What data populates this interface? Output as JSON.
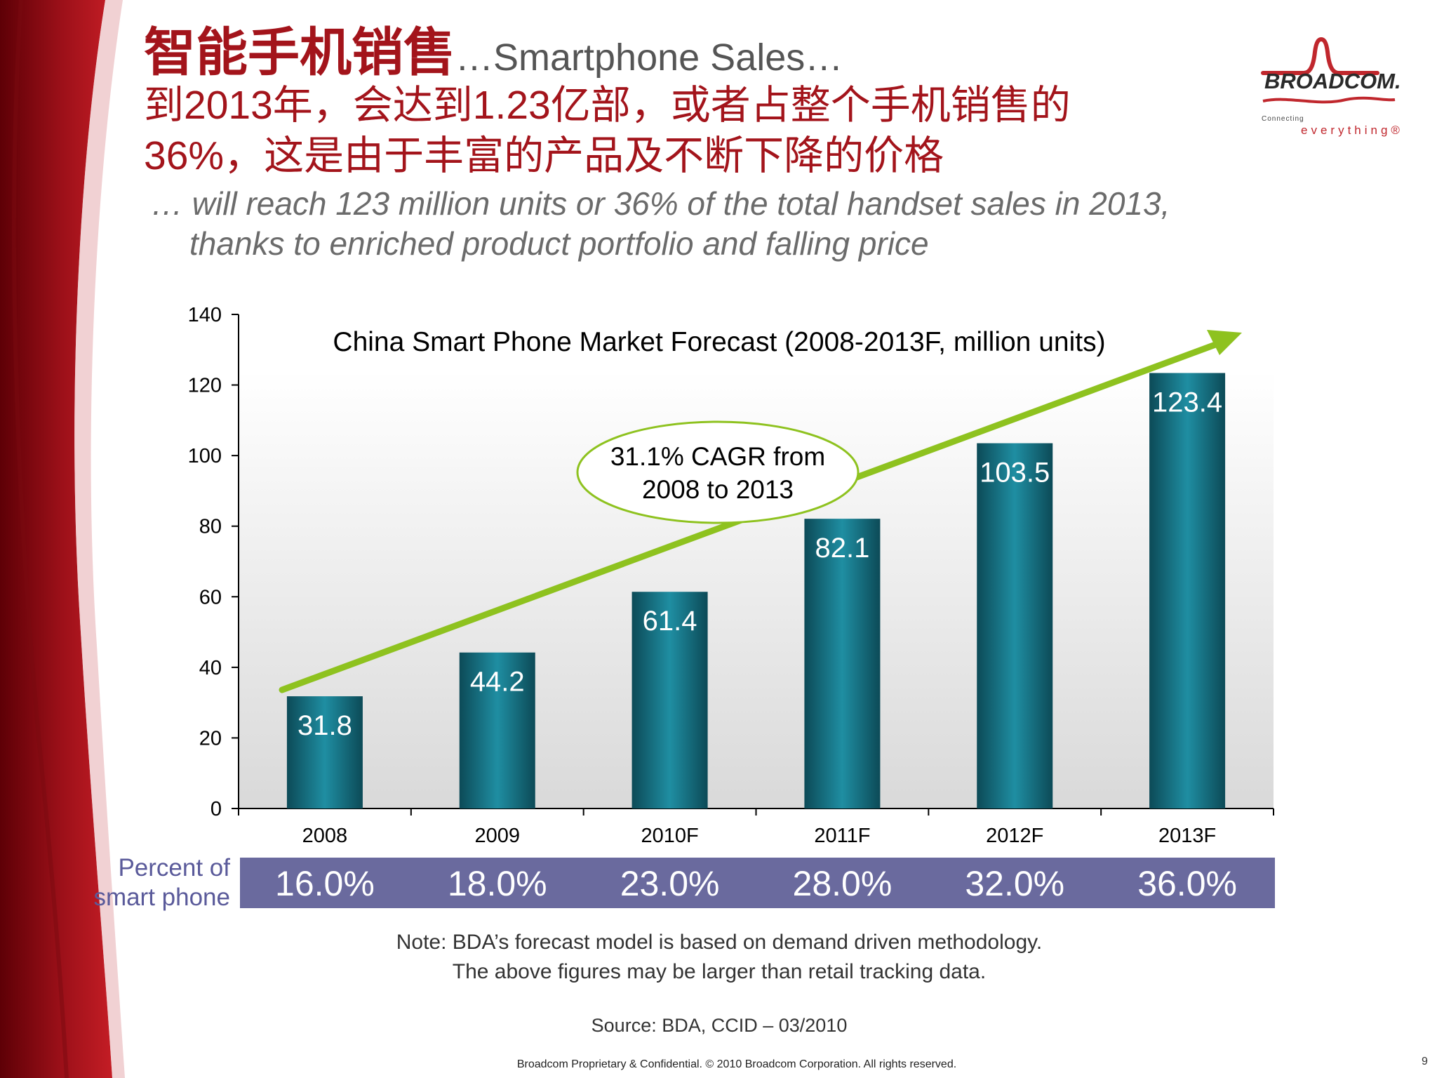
{
  "header": {
    "title_cn": "智能手机销售",
    "title_en": "…Smartphone Sales…",
    "subtitle_cn_line1": "到2013年，会达到1.23亿部，或者占整个手机销售的",
    "subtitle_cn_line2": "36%，这是由于丰富的产品及不断下降的价格",
    "subtitle_en_line1": "… will reach 123 million units or 36% of the total handset sales in 2013,",
    "subtitle_en_line2": "thanks to enriched product portfolio and  falling price"
  },
  "logo": {
    "wordmark": "BROADCOM.",
    "tagline_small": "Connecting",
    "tagline_main": "everything®"
  },
  "chart_data": {
    "type": "bar",
    "title": "China Smart Phone Market Forecast (2008-2013F, million units)",
    "categories": [
      "2008",
      "2009",
      "2010F",
      "2011F",
      "2012F",
      "2013F"
    ],
    "values": [
      31.8,
      44.2,
      61.4,
      82.1,
      103.5,
      123.4
    ],
    "value_labels": [
      "31.8",
      "44.2",
      "61.4",
      "82.1",
      "103.5",
      "123.4"
    ],
    "ylim": [
      0,
      140
    ],
    "yticks": [
      "0",
      "20",
      "40",
      "60",
      "80",
      "100",
      "120",
      "140"
    ],
    "annotation_line1": "31.1% CAGR from",
    "annotation_line2": "2008 to 2013",
    "percent_row_label_line1": "Percent of",
    "percent_row_label_line2": "smart phone",
    "percent_values": [
      "16.0%",
      "18.0%",
      "23.0%",
      "28.0%",
      "32.0%",
      "36.0%"
    ]
  },
  "colors": {
    "title_red": "#a3141b",
    "bar_teal": "#1b7a8c",
    "arrow_green": "#8ec21f",
    "percent_row_bg": "#6a6a9e"
  },
  "note_line1": "Note: BDA’s forecast model is based on demand driven methodology.",
  "note_line2": "The above figures may be larger than retail tracking data.",
  "source": "Source: BDA, CCID – 03/2010",
  "footer": "Broadcom Proprietary & Confidential.  © 2010 Broadcom Corporation.  All rights reserved.",
  "page_number": "9"
}
